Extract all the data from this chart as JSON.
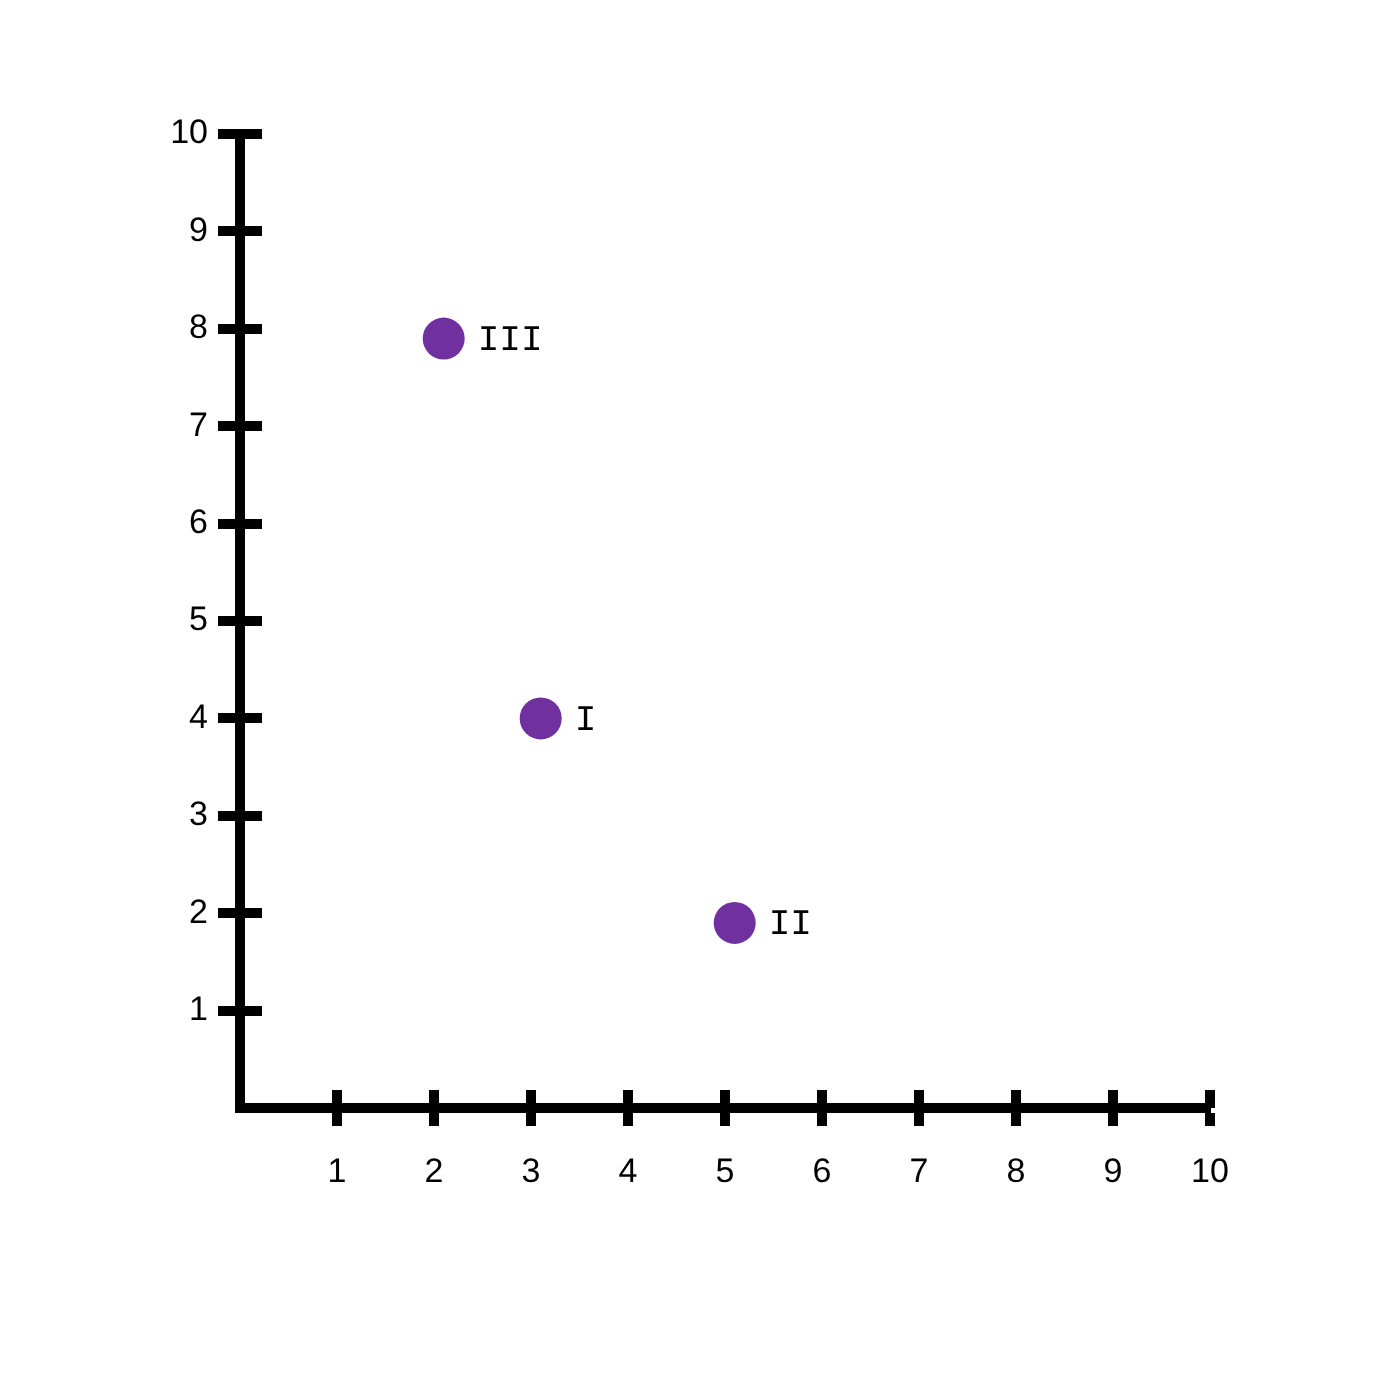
{
  "chart_data": {
    "type": "scatter",
    "x": [
      2.1,
      3.1,
      5.1
    ],
    "values": [
      7.9,
      4,
      1.9
    ],
    "value_labels": [
      "III",
      "I",
      "II"
    ],
    "color": "#7030a0",
    "marker": "circle",
    "xlim": [
      0,
      10
    ],
    "ylim": [
      0,
      10
    ],
    "xticks": [
      1,
      2,
      3,
      4,
      5,
      6,
      7,
      8,
      9,
      10
    ],
    "yticks": [
      1,
      2,
      3,
      4,
      5,
      6,
      7,
      8,
      9,
      10
    ],
    "grid": false,
    "legend": false
  }
}
